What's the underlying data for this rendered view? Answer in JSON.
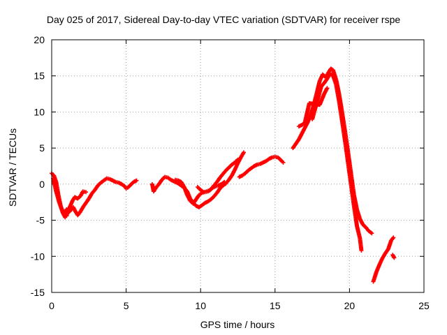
{
  "chart_data": {
    "type": "scatter",
    "title": "Day 025 of 2017, Sidereal Day-to-day VTEC variation (SDTVAR) for receiver rspe",
    "xlabel": "GPS time / hours",
    "ylabel": "SDTVAR / TECUs",
    "xlim": [
      0,
      25
    ],
    "ylim": [
      -15,
      20
    ],
    "x_ticks": [
      0,
      5,
      10,
      15,
      20,
      25
    ],
    "y_ticks": [
      -15,
      -10,
      -5,
      0,
      5,
      10,
      15,
      20
    ],
    "grid": true,
    "marker": "+",
    "color": "#ff0000",
    "series": [
      {
        "segments": [
          [
            [
              0.0,
              1.5
            ],
            [
              0.15,
              1.2
            ],
            [
              0.3,
              0.3
            ],
            [
              0.45,
              -1.5
            ],
            [
              0.6,
              -3.0
            ],
            [
              0.75,
              -4.0
            ],
            [
              0.9,
              -4.6
            ],
            [
              1.0,
              -4.4
            ],
            [
              1.1,
              -3.7
            ],
            [
              1.25,
              -3.0
            ],
            [
              1.4,
              -2.3
            ],
            [
              1.55,
              -1.8
            ],
            [
              1.75,
              -2.0
            ],
            [
              1.95,
              -1.6
            ],
            [
              2.1,
              -1.0
            ],
            [
              2.3,
              -1.1
            ]
          ],
          [
            [
              0.1,
              0.8
            ],
            [
              0.3,
              -1.0
            ],
            [
              0.5,
              -2.5
            ],
            [
              0.7,
              -3.6
            ],
            [
              0.85,
              -4.0
            ],
            [
              1.0,
              -3.5
            ],
            [
              1.2,
              -3.8
            ],
            [
              1.45,
              -3.2
            ],
            [
              1.6,
              -3.8
            ],
            [
              1.75,
              -4.3
            ],
            [
              1.9,
              -3.9
            ],
            [
              2.1,
              -3.2
            ],
            [
              2.3,
              -2.6
            ],
            [
              2.5,
              -2.0
            ],
            [
              2.7,
              -1.3
            ],
            [
              2.9,
              -0.8
            ],
            [
              3.1,
              -0.2
            ],
            [
              3.3,
              0.2
            ],
            [
              3.5,
              0.5
            ],
            [
              3.7,
              0.8
            ],
            [
              3.9,
              0.7
            ],
            [
              4.1,
              0.5
            ],
            [
              4.3,
              0.3
            ],
            [
              4.5,
              0.2
            ],
            [
              4.7,
              0.0
            ],
            [
              4.9,
              -0.3
            ],
            [
              5.0,
              -0.6
            ],
            [
              5.1,
              -0.5
            ],
            [
              5.3,
              -0.1
            ],
            [
              5.5,
              0.3
            ],
            [
              5.7,
              0.5
            ]
          ],
          [
            [
              6.75,
              0.0
            ],
            [
              6.85,
              -1.0
            ],
            [
              7.0,
              -0.5
            ],
            [
              7.2,
              0.0
            ],
            [
              7.4,
              0.6
            ],
            [
              7.6,
              1.0
            ],
            [
              7.8,
              0.9
            ],
            [
              8.0,
              0.6
            ],
            [
              8.2,
              0.4
            ],
            [
              8.5,
              0.1
            ],
            [
              8.7,
              -0.2
            ],
            [
              8.9,
              -0.5
            ],
            [
              9.1,
              -1.0
            ],
            [
              9.3,
              -2.0
            ],
            [
              9.5,
              -2.6
            ],
            [
              9.7,
              -3.0
            ],
            [
              9.9,
              -3.2
            ],
            [
              10.1,
              -2.9
            ],
            [
              10.3,
              -2.6
            ],
            [
              10.5,
              -2.4
            ],
            [
              10.7,
              -2.1
            ],
            [
              10.9,
              -1.7
            ],
            [
              11.1,
              -1.2
            ],
            [
              11.3,
              -0.6
            ],
            [
              11.5,
              -0.2
            ],
            [
              11.7,
              0.1
            ],
            [
              11.9,
              0.6
            ],
            [
              12.1,
              1.2
            ],
            [
              12.3,
              2.0
            ],
            [
              12.5,
              2.9
            ],
            [
              12.7,
              3.7
            ],
            [
              12.9,
              4.4
            ]
          ],
          [
            [
              8.3,
              0.6
            ],
            [
              8.5,
              0.5
            ],
            [
              8.7,
              0.3
            ],
            [
              8.9,
              -0.4
            ],
            [
              9.1,
              -1.5
            ],
            [
              9.3,
              -2.3
            ],
            [
              9.5,
              -2.7
            ],
            [
              9.7,
              -2.1
            ],
            [
              9.9,
              -1.5
            ],
            [
              10.1,
              -1.2
            ],
            [
              10.3,
              -1.1
            ],
            [
              10.5,
              -1.0
            ],
            [
              10.7,
              -0.7
            ],
            [
              10.9,
              -0.2
            ],
            [
              11.1,
              0.3
            ],
            [
              11.3,
              0.9
            ],
            [
              11.5,
              1.4
            ],
            [
              11.7,
              1.9
            ],
            [
              11.9,
              2.3
            ],
            [
              12.1,
              2.7
            ],
            [
              12.3,
              3.0
            ],
            [
              12.5,
              3.4
            ]
          ],
          [
            [
              9.8,
              -0.4
            ],
            [
              10.0,
              -0.8
            ],
            [
              10.2,
              -1.1
            ],
            [
              10.4,
              -1.0
            ],
            [
              10.6,
              -0.9
            ],
            [
              10.8,
              -0.5
            ],
            [
              11.0,
              -0.3
            ],
            [
              11.2,
              -0.2
            ],
            [
              11.4,
              0.0
            ],
            [
              11.6,
              0.3
            ]
          ],
          [
            [
              12.6,
              1.0
            ],
            [
              12.8,
              1.2
            ],
            [
              13.0,
              1.5
            ],
            [
              13.2,
              1.9
            ],
            [
              13.4,
              2.2
            ],
            [
              13.6,
              2.5
            ],
            [
              13.8,
              2.7
            ],
            [
              14.0,
              2.8
            ],
            [
              14.2,
              3.0
            ],
            [
              14.4,
              3.2
            ],
            [
              14.6,
              3.5
            ],
            [
              14.8,
              3.7
            ],
            [
              15.0,
              3.8
            ],
            [
              15.2,
              3.7
            ],
            [
              15.4,
              3.3
            ],
            [
              15.55,
              3.0
            ]
          ],
          [
            [
              16.2,
              5.0
            ],
            [
              16.4,
              5.6
            ],
            [
              16.6,
              6.2
            ],
            [
              16.8,
              7.0
            ],
            [
              17.0,
              7.8
            ],
            [
              17.2,
              8.6
            ],
            [
              17.4,
              9.6
            ],
            [
              17.6,
              11.0
            ],
            [
              17.8,
              12.6
            ],
            [
              18.0,
              14.3
            ],
            [
              18.2,
              15.2
            ],
            [
              18.4,
              14.8
            ],
            [
              18.6,
              15.5
            ],
            [
              18.75,
              16.0
            ],
            [
              18.9,
              15.8
            ],
            [
              19.1,
              14.5
            ],
            [
              19.3,
              12.5
            ],
            [
              19.5,
              10.0
            ],
            [
              19.7,
              7.3
            ],
            [
              19.9,
              4.5
            ],
            [
              20.1,
              1.5
            ],
            [
              20.3,
              -1.5
            ],
            [
              20.5,
              -3.5
            ],
            [
              20.7,
              -4.8
            ],
            [
              20.9,
              -5.6
            ],
            [
              21.1,
              -6.0
            ],
            [
              21.3,
              -6.5
            ],
            [
              21.5,
              -6.8
            ]
          ],
          [
            [
              17.5,
              9.0
            ],
            [
              17.7,
              10.5
            ],
            [
              17.9,
              12.0
            ],
            [
              18.1,
              13.5
            ],
            [
              18.3,
              14.0
            ],
            [
              18.5,
              14.6
            ],
            [
              18.7,
              15.3
            ],
            [
              18.9,
              15.0
            ],
            [
              19.1,
              13.8
            ],
            [
              19.3,
              11.5
            ],
            [
              19.5,
              8.8
            ],
            [
              19.7,
              6.0
            ],
            [
              19.9,
              3.0
            ],
            [
              20.1,
              0.0
            ],
            [
              20.3,
              -3.0
            ],
            [
              20.5,
              -5.8
            ],
            [
              20.7,
              -7.5
            ],
            [
              20.8,
              -9.2
            ]
          ],
          [
            [
              16.6,
              8.0
            ],
            [
              16.8,
              8.2
            ],
            [
              17.0,
              8.5
            ],
            [
              17.3,
              11.2
            ],
            [
              18.0,
              11.0
            ],
            [
              18.3,
              12.5
            ],
            [
              18.5,
              13.3
            ]
          ],
          [
            [
              21.6,
              -13.5
            ],
            [
              21.8,
              -12.2
            ],
            [
              22.0,
              -11.2
            ],
            [
              22.2,
              -10.3
            ],
            [
              22.4,
              -9.6
            ],
            [
              22.6,
              -9.0
            ],
            [
              22.8,
              -7.8
            ],
            [
              22.95,
              -7.4
            ]
          ],
          [
            [
              22.9,
              -9.8
            ],
            [
              23.0,
              -10.2
            ]
          ]
        ]
      }
    ]
  }
}
